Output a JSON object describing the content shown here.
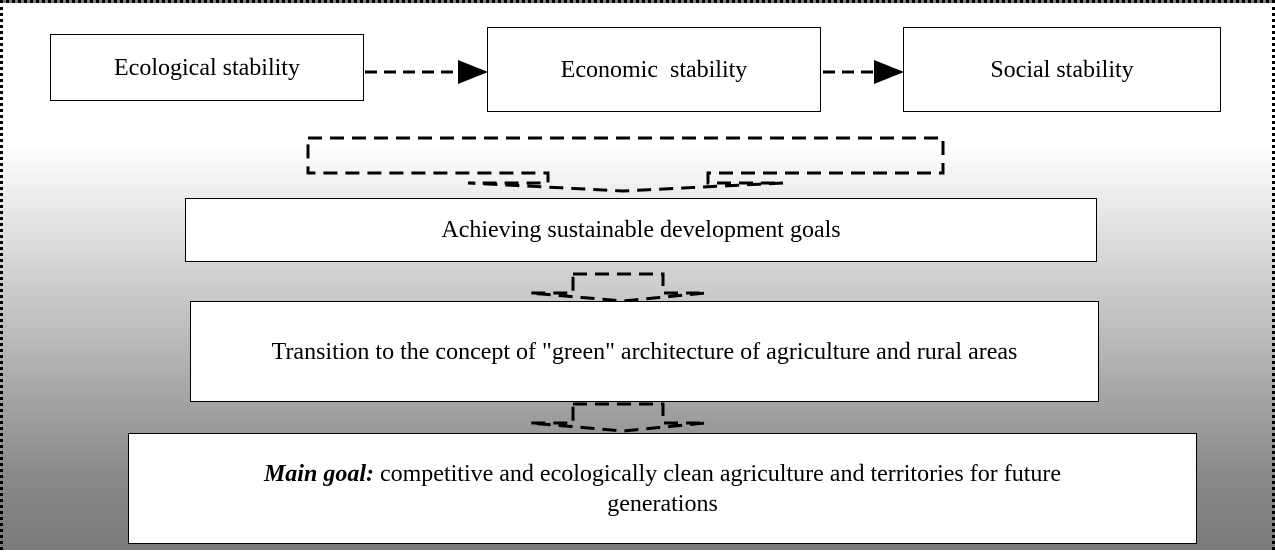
{
  "nodes": [
    {
      "label": "Ecological stability"
    },
    {
      "label": "Economic  stability"
    },
    {
      "label": "Social stability"
    },
    {
      "label": "Achieving sustainable development goals"
    },
    {
      "label": "Transition to the concept of \"green\" architecture of agriculture and rural areas"
    },
    {
      "emphasis": "Main goal:",
      "label": "competitive and ecologically clean agriculture and territories for future generations"
    }
  ]
}
